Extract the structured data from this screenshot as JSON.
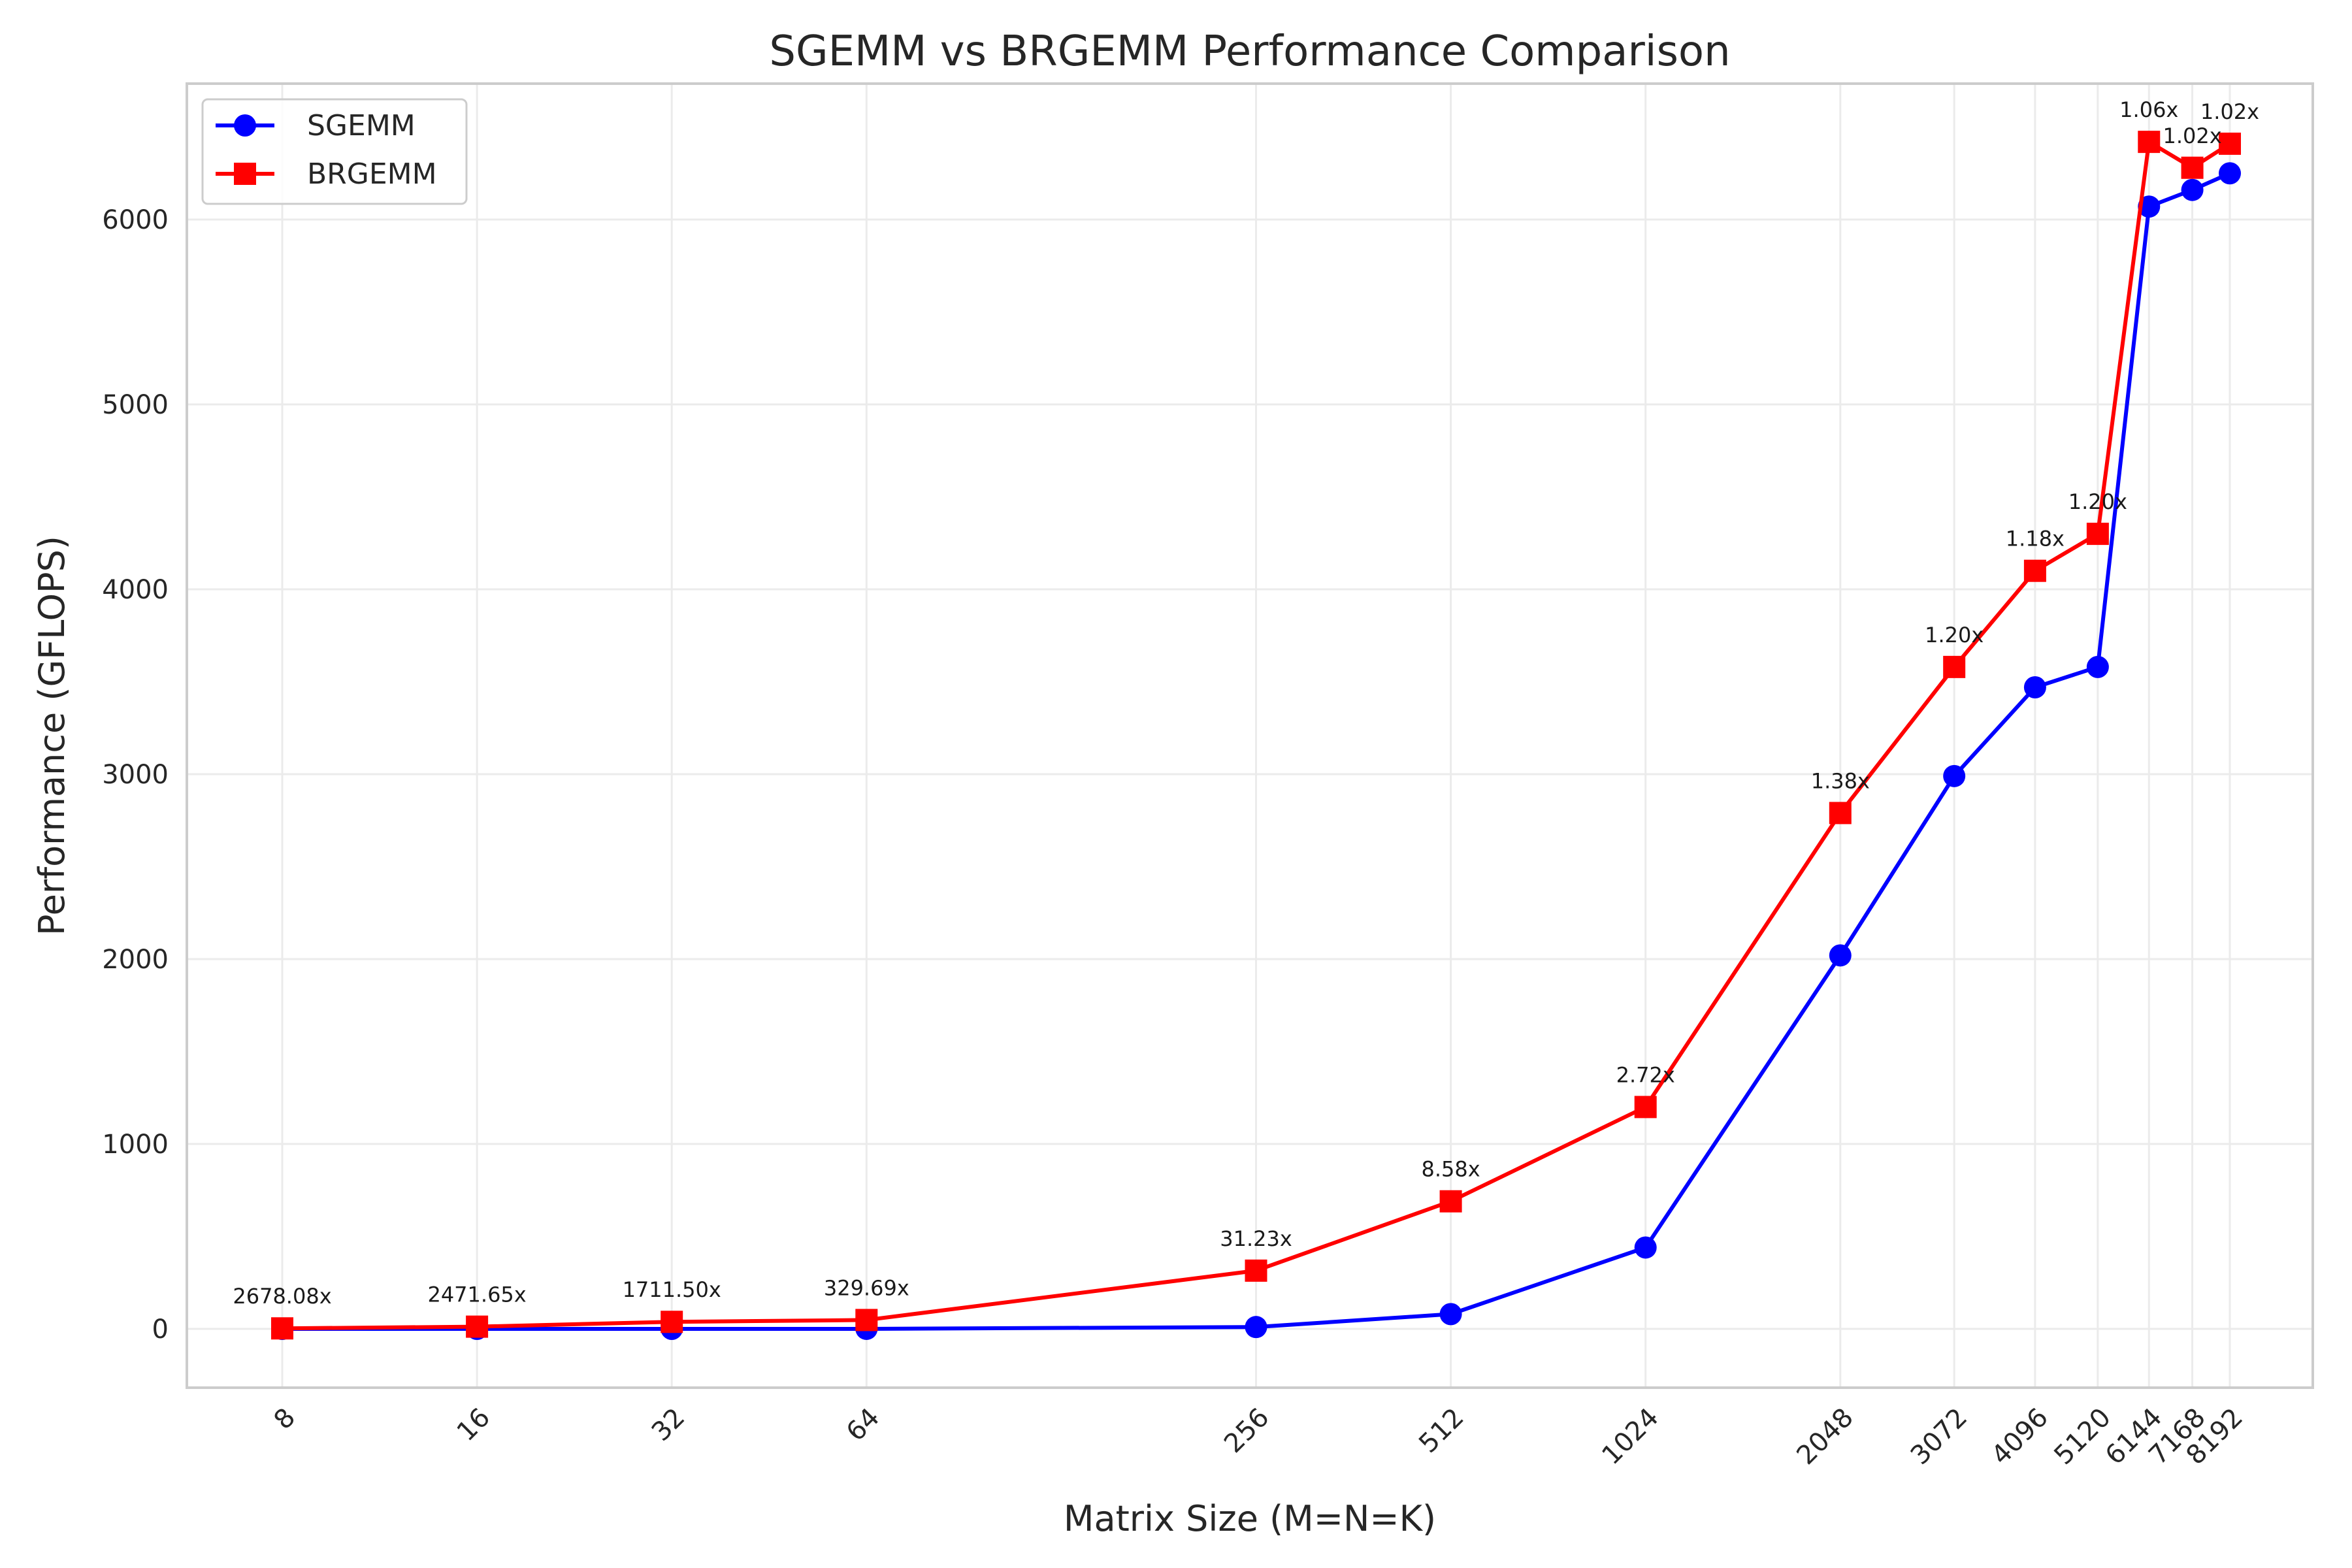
{
  "chart_data": {
    "type": "line",
    "title": "SGEMM vs BRGEMM Performance Comparison",
    "xlabel": "Matrix Size (M=N=K)",
    "ylabel": "Performance (GFLOPS)",
    "x_scale": "log2",
    "x": [
      8,
      16,
      32,
      64,
      256,
      512,
      1024,
      2048,
      3072,
      4096,
      5120,
      6144,
      7168,
      8192
    ],
    "x_tick_labels": [
      "8",
      "16",
      "32",
      "64",
      "256",
      "512",
      "1024",
      "2048",
      "3072",
      "4096",
      "5120",
      "6144",
      "7168",
      "8192"
    ],
    "ylim": [
      -320,
      6760
    ],
    "y_ticks": [
      0,
      1000,
      2000,
      3000,
      4000,
      5000,
      6000
    ],
    "y_tick_labels": [
      "0",
      "1000",
      "2000",
      "3000",
      "4000",
      "5000",
      "6000"
    ],
    "grid": true,
    "legend_position": "top-left",
    "series": [
      {
        "name": "SGEMM",
        "color": "#0000ff",
        "marker": "circle",
        "values": [
          0.001,
          0.005,
          0.02,
          0.15,
          10,
          80,
          440,
          2020,
          2990,
          3470,
          3580,
          6070,
          6160,
          6250
        ]
      },
      {
        "name": "BRGEMM",
        "color": "#ff0000",
        "marker": "square",
        "values": [
          2.7,
          12,
          38,
          48,
          315,
          690,
          1200,
          2790,
          3580,
          4100,
          4300,
          6420,
          6280,
          6410
        ]
      }
    ],
    "annotations": [
      "2678.08x",
      "2471.65x",
      "1711.50x",
      "329.69x",
      "31.23x",
      "8.58x",
      "2.72x",
      "1.38x",
      "1.20x",
      "1.18x",
      "1.20x",
      "1.06x",
      "1.02x",
      "1.02x"
    ]
  }
}
